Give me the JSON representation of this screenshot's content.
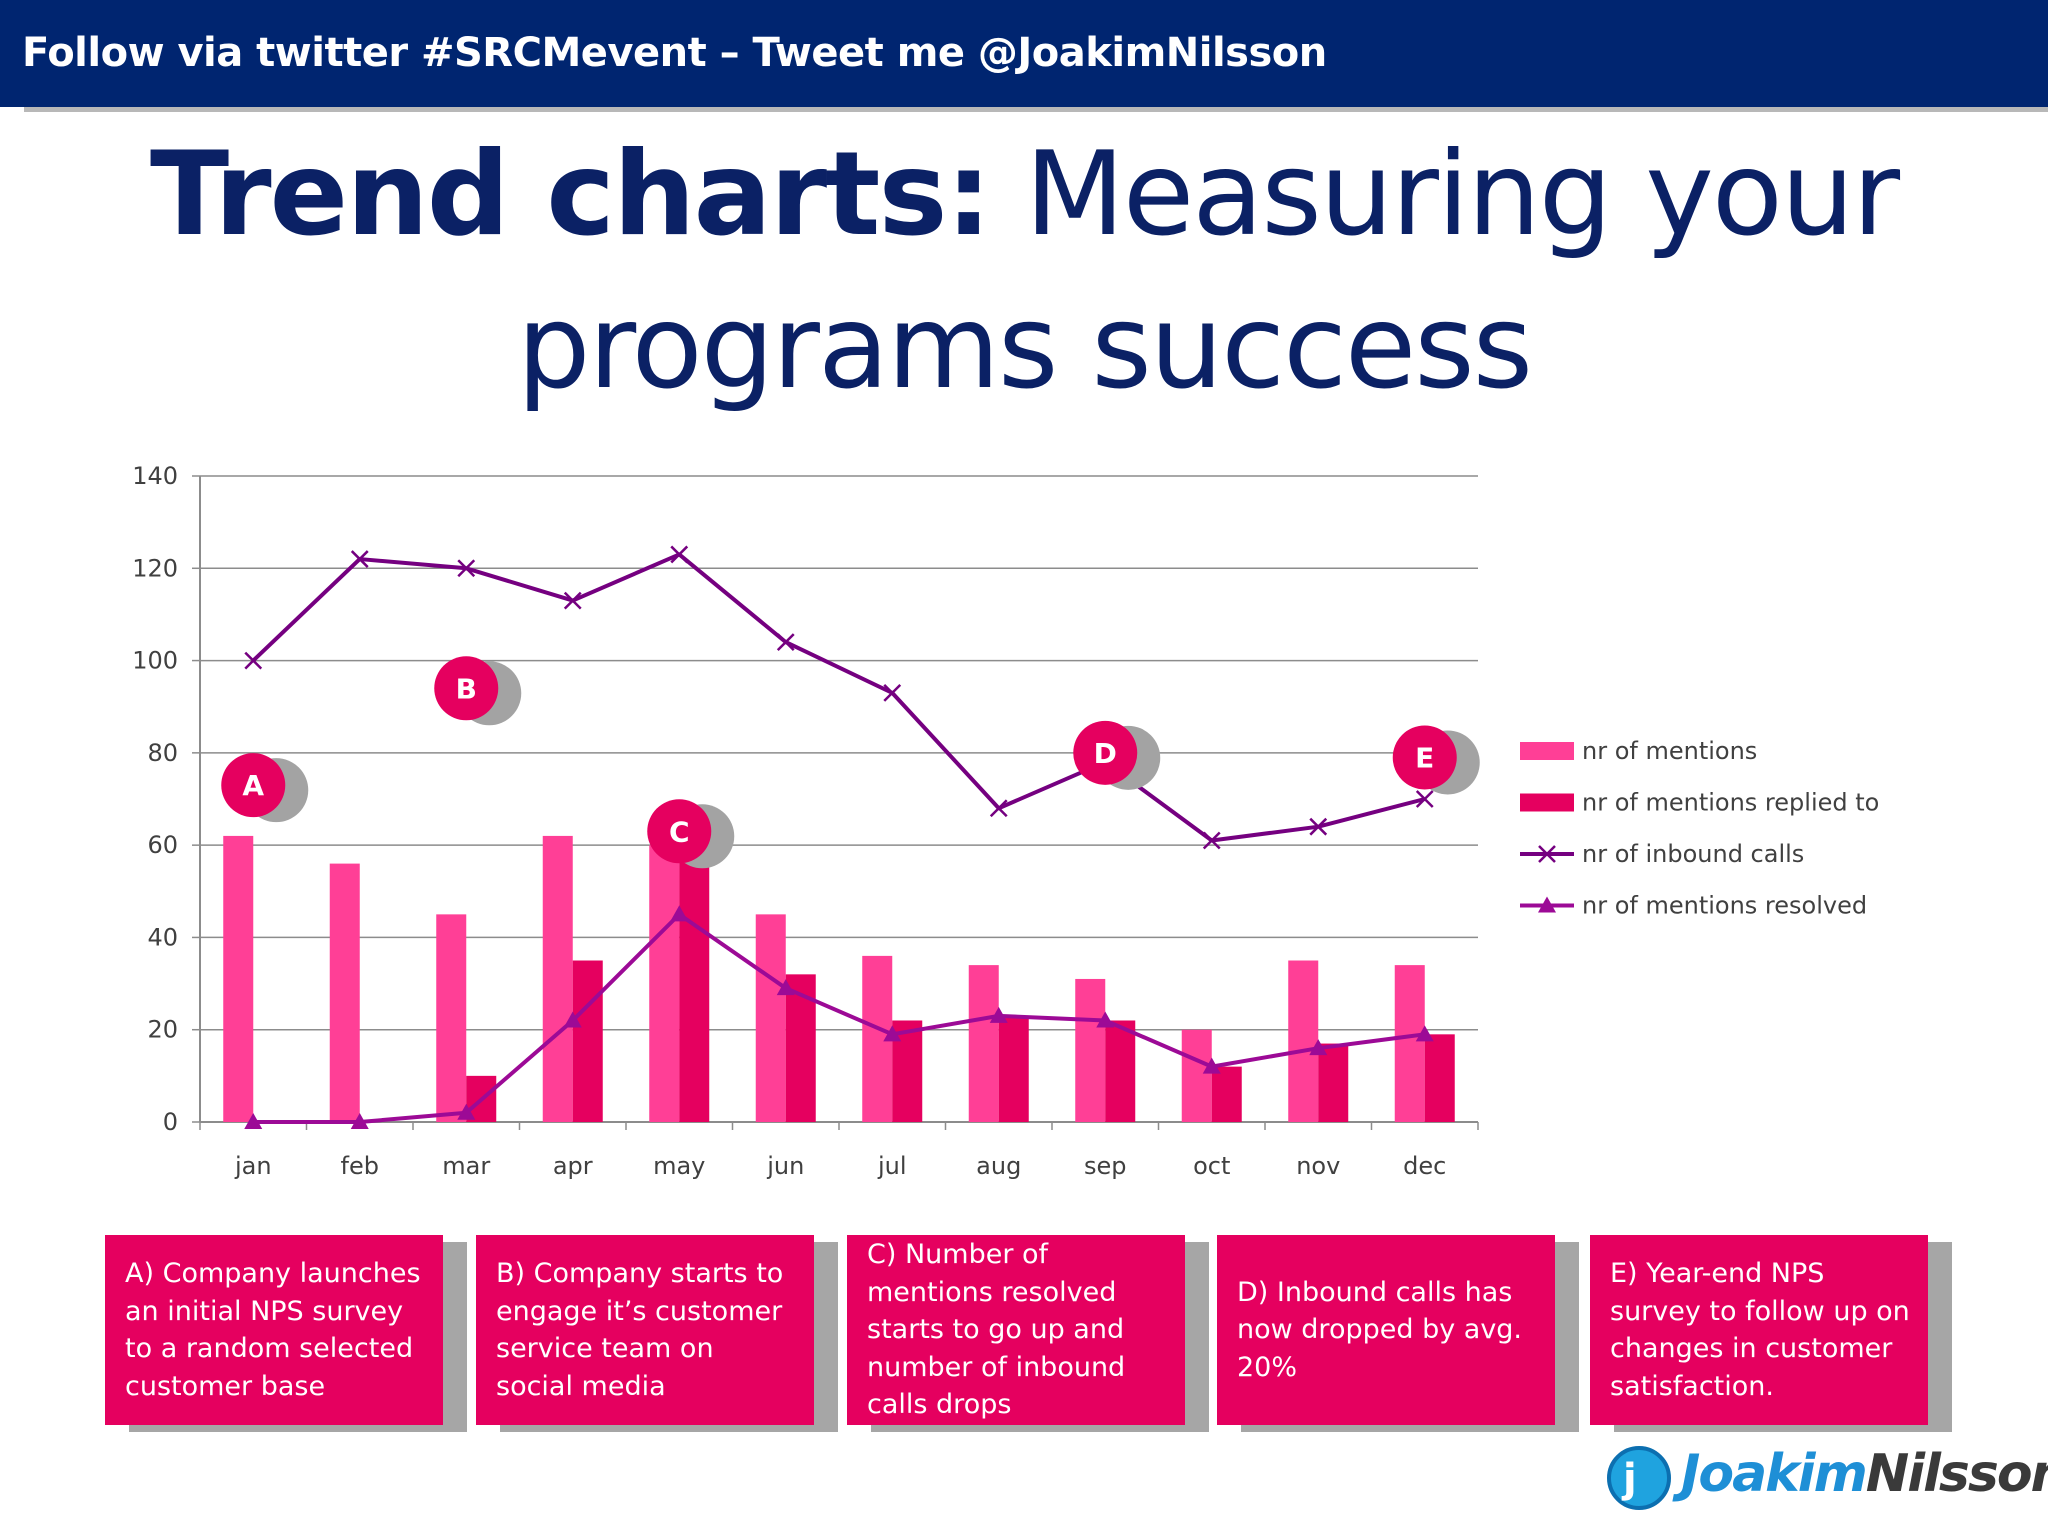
{
  "header": {
    "banner_text": "Follow via twitter #SRCMevent – Tweet me @JoakimNilsson"
  },
  "slide": {
    "title_bold": "Trend charts:",
    "title_rest": " Measuring your programs success"
  },
  "chart_data": {
    "type": "bar",
    "categories": [
      "jan",
      "feb",
      "mar",
      "apr",
      "may",
      "jun",
      "jul",
      "aug",
      "sep",
      "oct",
      "nov",
      "dec"
    ],
    "ylim": [
      0,
      140
    ],
    "yticks": [
      0,
      20,
      40,
      60,
      80,
      100,
      120,
      140
    ],
    "grid": true,
    "legend_position": "right",
    "series": [
      {
        "name": "nr of mentions",
        "type": "bar",
        "color": "#ff3f96",
        "values": [
          62,
          56,
          45,
          62,
          60,
          45,
          36,
          34,
          31,
          20,
          35,
          34
        ]
      },
      {
        "name": "nr of mentions replied to",
        "type": "bar",
        "color": "#e5005f",
        "values": [
          0,
          0,
          10,
          35,
          57,
          32,
          22,
          23,
          22,
          12,
          17,
          19
        ]
      },
      {
        "name": "nr of inbound calls",
        "type": "line",
        "marker": "x",
        "color": "#750080",
        "values": [
          100,
          122,
          120,
          113,
          123,
          104,
          93,
          68,
          78,
          61,
          64,
          70
        ]
      },
      {
        "name": "nr of mentions resolved",
        "type": "line",
        "marker": "triangle",
        "color": "#9c0a96",
        "values": [
          0,
          0,
          2,
          22,
          45,
          29,
          19,
          23,
          22,
          12,
          16,
          19
        ]
      }
    ],
    "annotations": [
      {
        "label": "A",
        "month": "jan",
        "value": 73
      },
      {
        "label": "B",
        "month": "mar",
        "value": 94
      },
      {
        "label": "C",
        "month": "may",
        "value": 63
      },
      {
        "label": "D",
        "month": "sep",
        "value": 80
      },
      {
        "label": "E",
        "month": "dec",
        "value": 79
      }
    ]
  },
  "notes": [
    {
      "text": "A) Company launches an initial NPS survey to a random selected customer base"
    },
    {
      "text": "B) Company starts to engage it’s customer service team on social media"
    },
    {
      "text": "C) Number of mentions resolved starts to go up and number of inbound calls drops"
    },
    {
      "text": "D) Inbound calls has now dropped by avg. 20%"
    },
    {
      "text": "E) Year-end NPS survey to follow up on changes in customer satisfaction."
    }
  ],
  "logo": {
    "mark": "j",
    "first": "Joakim",
    "last": "Nilsson"
  }
}
